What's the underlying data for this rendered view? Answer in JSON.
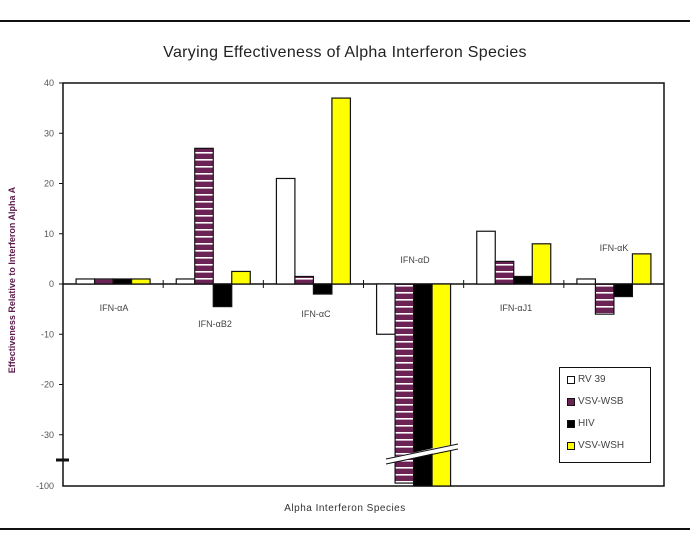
{
  "chart_data": {
    "type": "bar",
    "title": "Varying Effectiveness of Alpha Interferon Species",
    "xlabel": "Alpha Interferon Species",
    "ylabel": "Effectiveness Relative to Interferon Alpha A",
    "ylim": [
      -100,
      40
    ],
    "axis_break": {
      "between": [
        -30,
        -100
      ],
      "note": "Y axis broken below -30; bottom tick labeled -100"
    },
    "y_ticks": [
      "40",
      "30",
      "20",
      "10",
      "0",
      "-10",
      "-20",
      "-30",
      "-100"
    ],
    "grid": false,
    "legend_position": "lower right inside plot",
    "categories": [
      "IFN-αA",
      "IFN-αB2",
      "IFN-αC",
      "IFN-αD",
      "IFN-αJ1",
      "IFN-αK"
    ],
    "series": [
      {
        "name": "RV 39",
        "color": "#ffffff",
        "values": [
          1,
          1,
          21,
          -10,
          10.5,
          1
        ]
      },
      {
        "name": "VSV-WSB",
        "color": "#6b2356",
        "pattern": "horizontal white stripes",
        "values": [
          1,
          27,
          1.5,
          -96,
          4.5,
          -6
        ]
      },
      {
        "name": "HIV",
        "color": "#000000",
        "values": [
          1,
          -4.5,
          -2,
          -100,
          1.5,
          -2.5
        ]
      },
      {
        "name": "VSV-WSH",
        "color": "#ffff00",
        "values": [
          1,
          2.5,
          37,
          -100,
          8,
          6
        ]
      }
    ]
  },
  "labels": {
    "title": "Varying Effectiveness of Alpha Interferon Species",
    "xlabel": "Alpha Interferon Species",
    "ylabel": "Effectiveness Relative to Interferon Alpha A"
  },
  "legend": [
    {
      "label": "RV 39",
      "color": "#ffffff"
    },
    {
      "label": "VSV-WSB",
      "color": "#6b2356"
    },
    {
      "label": "HIV",
      "color": "#000000"
    },
    {
      "label": "VSV-WSH",
      "color": "#ffff00"
    }
  ]
}
